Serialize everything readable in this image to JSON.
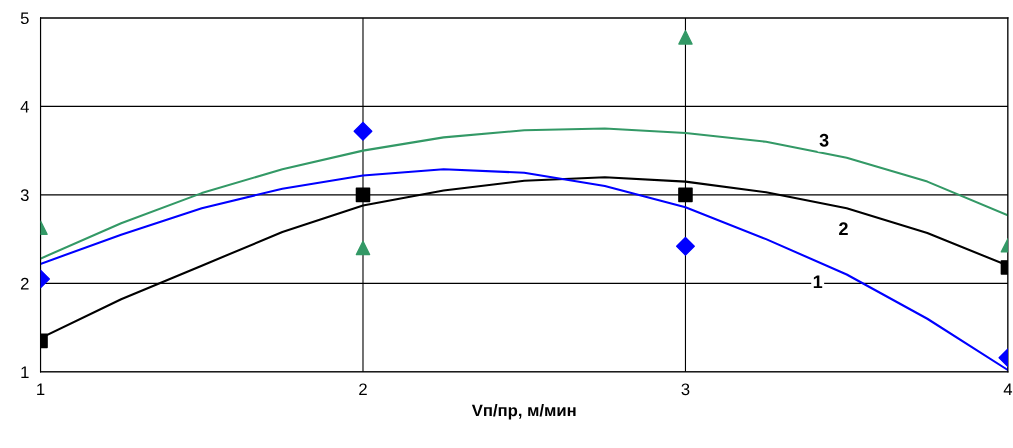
{
  "chart_data": {
    "type": "scatter",
    "xlabel": "Vп/пр, м/мин",
    "xlim": [
      1,
      4
    ],
    "ylim": [
      1,
      5
    ],
    "xticks": [
      1,
      2,
      3,
      4
    ],
    "yticks": [
      1,
      2,
      3,
      4,
      5
    ],
    "grid": true,
    "legend": false,
    "series": [
      {
        "marker": "square",
        "color": "#000000",
        "x": [
          1,
          2,
          3,
          4
        ],
        "values": [
          1.35,
          3.0,
          3.0,
          2.18
        ]
      },
      {
        "marker": "diamond",
        "color": "#0000ff",
        "x": [
          1,
          2,
          3,
          4
        ],
        "values": [
          2.05,
          3.72,
          2.42,
          1.16
        ]
      },
      {
        "marker": "triangle",
        "color": "#339966",
        "x": [
          1,
          2,
          3,
          4
        ],
        "values": [
          2.63,
          2.4,
          4.78,
          2.43
        ]
      },
      {
        "type": "line",
        "marker": "none",
        "line_style": "solid",
        "color": "#000000",
        "x": [
          1,
          1.25,
          1.5,
          1.75,
          2,
          2.25,
          2.5,
          2.75,
          3,
          3.25,
          3.5,
          3.75,
          4
        ],
        "values": [
          1.38,
          1.82,
          2.2,
          2.58,
          2.88,
          3.05,
          3.16,
          3.2,
          3.15,
          3.03,
          2.85,
          2.57,
          2.2
        ]
      },
      {
        "type": "line",
        "marker": "none",
        "line_style": "solid",
        "color": "#0000ff",
        "x": [
          1,
          1.25,
          1.5,
          1.75,
          2,
          2.25,
          2.5,
          2.75,
          3,
          3.25,
          3.5,
          3.75,
          4
        ],
        "values": [
          2.22,
          2.55,
          2.85,
          3.07,
          3.22,
          3.29,
          3.25,
          3.1,
          2.86,
          2.5,
          2.1,
          1.6,
          1.02
        ]
      },
      {
        "type": "line",
        "marker": "none",
        "line_style": "solid",
        "color": "#339966",
        "x": [
          1,
          1.25,
          1.5,
          1.75,
          2,
          2.25,
          2.5,
          2.75,
          3,
          3.25,
          3.5,
          3.75,
          4
        ],
        "values": [
          2.28,
          2.68,
          3.02,
          3.29,
          3.5,
          3.65,
          3.73,
          3.75,
          3.7,
          3.6,
          3.42,
          3.15,
          2.77
        ]
      }
    ],
    "annotations": [
      {
        "text": "1",
        "x": 3.41,
        "y": 2.0
      },
      {
        "text": "2",
        "x": 3.49,
        "y": 2.6
      },
      {
        "text": "3",
        "x": 3.43,
        "y": 3.6
      }
    ]
  }
}
